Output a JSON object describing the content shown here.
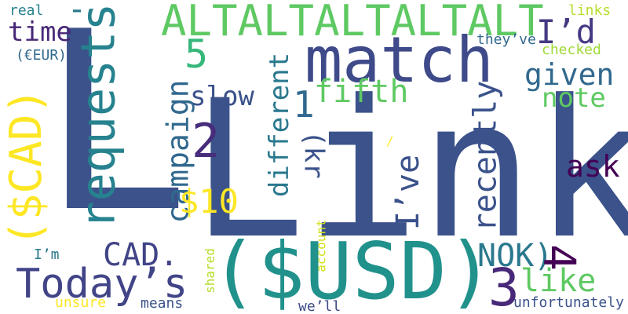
{
  "words": [
    {
      "text": "Link",
      "color": "#3b528b"
    },
    {
      "text": "($USD)",
      "color": "#21918c"
    },
    {
      "text": "L",
      "color": "#3b528b"
    },
    {
      "text": "match",
      "color": "#3e4a89"
    },
    {
      "text": "ALTALTALTALTALT",
      "color": "#5ec962"
    },
    {
      "text": "requests",
      "color": "#26828e"
    },
    {
      "text": "($CAD)",
      "color": "#fde725"
    },
    {
      "text": "Today’s",
      "color": "#414487"
    },
    {
      "text": "I’d",
      "color": "#443a83"
    },
    {
      "text": "time",
      "color": "#482878"
    },
    {
      "text": "5",
      "color": "#35b779"
    },
    {
      "text": "given",
      "color": "#31688e"
    },
    {
      "text": "note",
      "color": "#5ec962"
    },
    {
      "text": "fifth",
      "color": "#5ec962"
    },
    {
      "text": "slow",
      "color": "#3b528b"
    },
    {
      "text": "1",
      "color": "#31688e"
    },
    {
      "text": "2",
      "color": "#472d7b"
    },
    {
      "text": "campaign",
      "color": "#31688e"
    },
    {
      "text": "different",
      "color": "#2a788e"
    },
    {
      "text": "(kr",
      "color": "#3b528b"
    },
    {
      "text": "recently",
      "color": "#3b528b"
    },
    {
      "text": "I’ve",
      "color": "#3b528b"
    },
    {
      "text": "ask",
      "color": "#440154"
    },
    {
      "text": "$10",
      "color": "#fde725"
    },
    {
      "text": "CAD.",
      "color": "#414487"
    },
    {
      "text": "NOK)",
      "color": "#2a788e"
    },
    {
      "text": "4",
      "color": "#440154"
    },
    {
      "text": "3",
      "color": "#482878"
    },
    {
      "text": "like",
      "color": "#5ec962"
    },
    {
      "text": "-",
      "color": "#2a788e"
    },
    {
      "text": "real",
      "color": "#26828e"
    },
    {
      "text": "(€EUR)",
      "color": "#31688e"
    },
    {
      "text": "links",
      "color": "#b5de2b"
    },
    {
      "text": "they’ve",
      "color": "#31688e"
    },
    {
      "text": "checked",
      "color": "#a0da39"
    },
    {
      "text": "/",
      "color": "#fde725"
    },
    {
      "text": "account",
      "color": "#d2e21b"
    },
    {
      "text": "shared",
      "color": "#b5de2b"
    },
    {
      "text": "I’m",
      "color": "#2a788e"
    },
    {
      "text": "unsure",
      "color": "#fde725"
    },
    {
      "text": "means",
      "color": "#3b528b"
    },
    {
      "text": "we’ll",
      "color": "#3e4a89"
    },
    {
      "text": "unfortunately",
      "color": "#3b528b"
    }
  ]
}
